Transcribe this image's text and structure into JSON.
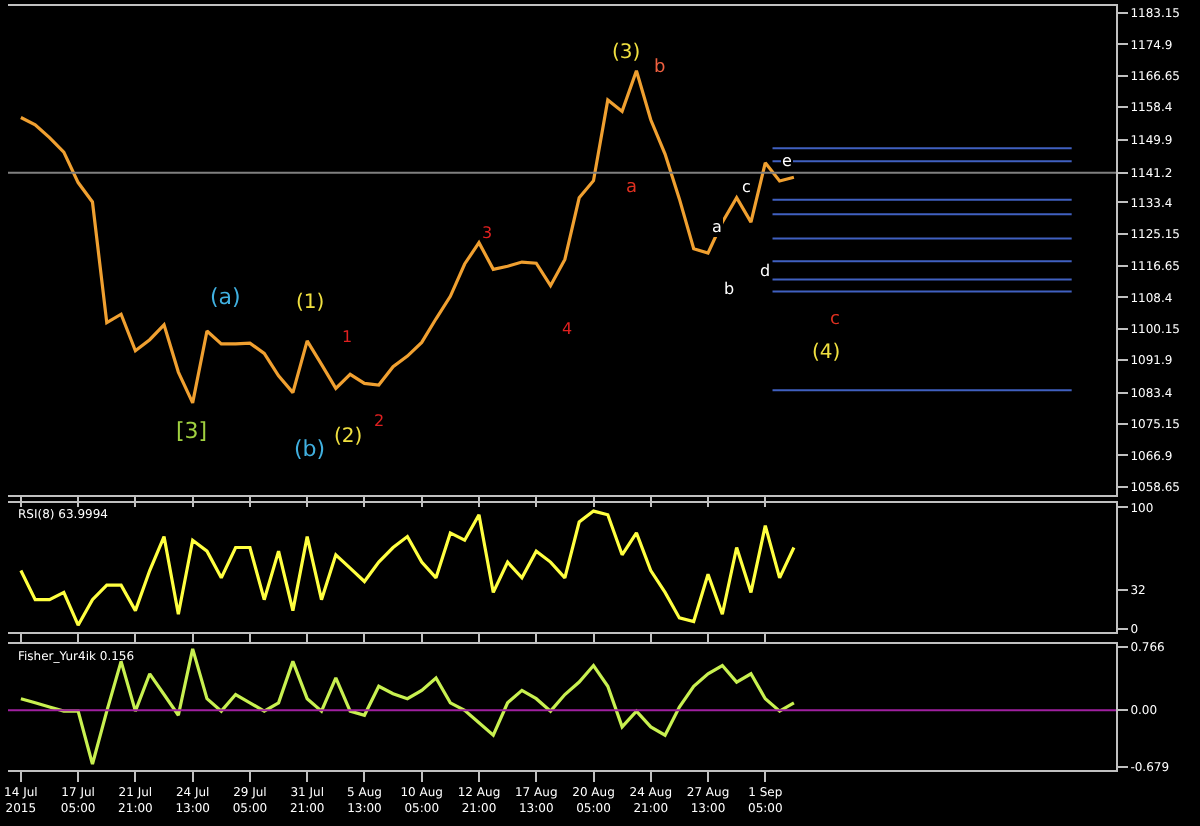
{
  "chart_data": [
    {
      "type": "line",
      "tick_labels": "y",
      "grid": false,
      "marker": "none",
      "line_style": "solid",
      "series": [
        {
          "color": "#f0a030",
          "values": [
            1155.7,
            1153.8,
            1150.4,
            1146.6,
            1138.6,
            1133.5,
            1101.8,
            1104,
            1094.4,
            1097.3,
            1101.2,
            1088.8,
            1080.7,
            1099.6,
            1096.2,
            1096.2,
            1096.4,
            1093.7,
            1087.8,
            1083.4,
            1097,
            1090.8,
            1084.5,
            1088.2,
            1085.8,
            1085.4,
            1090.2,
            1093,
            1096.6,
            1102.8,
            1108.7,
            1117.2,
            1122.8,
            1115.8,
            1116.6,
            1117.7,
            1117.4,
            1111.5,
            1118.4,
            1134.6,
            1139.1,
            1160.3,
            1157.3,
            1168,
            1155.1,
            1146.1,
            1134.3,
            1121.2,
            1120.1,
            1128.2,
            1134.6,
            1128.2,
            1143.8,
            1139,
            1140,
            null,
            null,
            null,
            null,
            null,
            null,
            null,
            null,
            null,
            null,
            null,
            null,
            null,
            null,
            null,
            null,
            null,
            null,
            null,
            null,
            null,
            null
          ]
        }
      ],
      "ylim": [
        1056.5,
        1185
      ],
      "yticks": [
        1183.15,
        1174.9,
        1166.65,
        1158.4,
        1149.9,
        1141.2,
        1133.4,
        1125.15,
        1116.65,
        1108.4,
        1100.15,
        1091.9,
        1083.4,
        1075.15,
        1066.9,
        1058.65
      ],
      "ref_lines": [
        {
          "axis": "y",
          "value": 1141.2,
          "color": "#808080"
        },
        {
          "axis": "y",
          "value": 1147.6,
          "color": "#4060c0"
        },
        {
          "axis": "y",
          "value": 1144.2,
          "color": "#4060c0"
        },
        {
          "axis": "y",
          "value": 1134.1,
          "color": "#4060c0"
        },
        {
          "axis": "y",
          "value": 1130.3,
          "color": "#4060c0"
        },
        {
          "axis": "y",
          "value": 1123.9,
          "color": "#4060c0"
        },
        {
          "axis": "y",
          "value": 1117.9,
          "color": "#4060c0"
        },
        {
          "axis": "y",
          "value": 1113.1,
          "color": "#4060c0"
        },
        {
          "axis": "y",
          "value": 1110,
          "color": "#4060c0"
        },
        {
          "axis": "y",
          "value": 1084,
          "color": "#4060c0"
        }
      ],
      "annotations": [
        "[3]",
        "(a)",
        "(b)",
        "(1)",
        "(2)",
        "(3)",
        "(4)",
        "b",
        "a",
        "a",
        "b",
        "c",
        "d",
        "e",
        "3",
        "4",
        "1",
        "2",
        "c"
      ]
    },
    {
      "type": "line",
      "title": "RSI(8) 63.9994",
      "tick_labels": "y",
      "grid": false,
      "marker": "none",
      "line_style": "solid",
      "series": [
        {
          "color": "#ffff40",
          "values": [
            48,
            24,
            24,
            30,
            3,
            24,
            36,
            36,
            15,
            48,
            76,
            12,
            73,
            64,
            42,
            67,
            67,
            24,
            64,
            15,
            76,
            24,
            61,
            50,
            39,
            55,
            67,
            76,
            55,
            42,
            79,
            73,
            94,
            30,
            55,
            42,
            64,
            55,
            42,
            88,
            97,
            94,
            61,
            79,
            48,
            30,
            9,
            6,
            45,
            12,
            67,
            30,
            85,
            42,
            67,
            null,
            null,
            null,
            null,
            null,
            null,
            null,
            null,
            null,
            null,
            null,
            null,
            null,
            null,
            null,
            null,
            null,
            null,
            null,
            null,
            null,
            null
          ]
        }
      ],
      "ylim": [
        -3,
        104
      ],
      "yticks": [
        0,
        32,
        100
      ]
    },
    {
      "type": "line",
      "title": "Fisher_Yur4ik 0.156",
      "grid": false,
      "marker": "none",
      "line_style": "solid",
      "categories": [
        "14 Jul 2015",
        null,
        null,
        null,
        "17 Jul 05:00",
        null,
        null,
        null,
        "21 Jul 21:00",
        null,
        null,
        null,
        "24 Jul 13:00",
        null,
        null,
        null,
        "29 Jul 05:00",
        null,
        null,
        null,
        "31 Jul 21:00",
        null,
        null,
        null,
        "5 Aug 13:00",
        null,
        null,
        null,
        "10 Aug 05:00",
        null,
        null,
        null,
        "12 Aug 21:00",
        null,
        null,
        null,
        "17 Aug 13:00",
        null,
        null,
        null,
        "20 Aug 05:00",
        null,
        null,
        null,
        "24 Aug 21:00",
        null,
        null,
        null,
        "27 Aug 13:00",
        null,
        null,
        null,
        "1 Sep 05:00",
        null,
        null,
        null,
        null,
        null,
        null,
        null,
        null,
        null,
        null,
        null,
        null,
        null,
        null,
        null,
        null,
        null,
        null,
        null,
        null,
        null,
        null,
        null,
        null
      ],
      "series": [
        {
          "color": "#c8f050",
          "values": [
            0.14,
            0.09,
            0.04,
            -0.01,
            -0.01,
            -0.65,
            -0.01,
            0.59,
            -0.01,
            0.44,
            0.19,
            -0.06,
            0.74,
            0.14,
            -0.01,
            0.19,
            0.09,
            -0.01,
            0.09,
            0.59,
            0.14,
            -0.01,
            0.39,
            -0.01,
            -0.06,
            0.29,
            0.2,
            0.14,
            0.24,
            0.39,
            0.09,
            0,
            -0.15,
            -0.3,
            0.09,
            0.24,
            0.14,
            -0.01,
            0.19,
            0.34,
            0.54,
            0.29,
            -0.2,
            -0.01,
            -0.2,
            -0.3,
            0.04,
            0.29,
            0.44,
            0.54,
            0.34,
            0.44,
            0.14,
            -0.01,
            0.09,
            null,
            null,
            null,
            null,
            null,
            null,
            null,
            null,
            null,
            null,
            null,
            null,
            null,
            null,
            null,
            null,
            null,
            null,
            null,
            null,
            null,
            null
          ]
        }
      ],
      "ylim": [
        -0.72,
        0.8
      ],
      "yticks": [
        0.766,
        {
          "value": 0,
          "label": "0.00"
        },
        -0.679
      ],
      "ref_lines": [
        {
          "axis": "y",
          "value": 0,
          "color": "#a020a0"
        }
      ]
    }
  ]
}
